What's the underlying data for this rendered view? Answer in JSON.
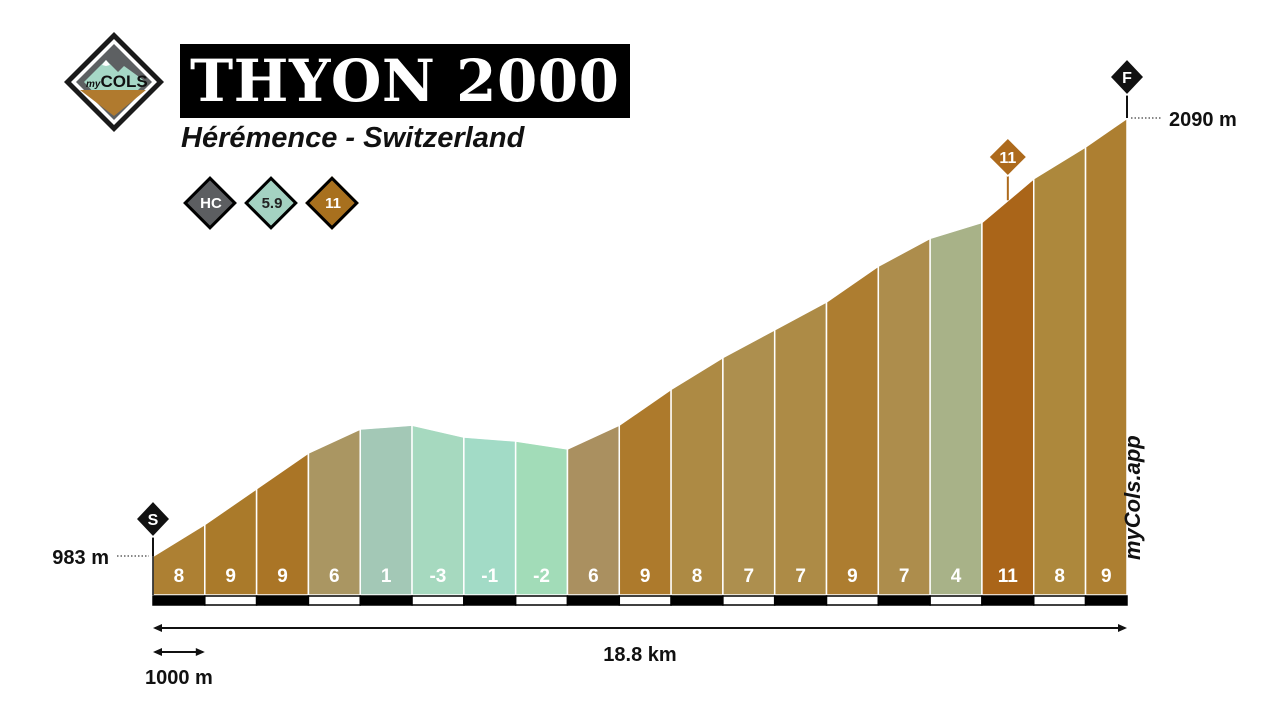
{
  "title": "THYON 2000",
  "subtitle": "Hérémence - Switzerland",
  "logo": {
    "text_small": "my",
    "text_big": "COLS"
  },
  "badges": [
    {
      "label": "HC",
      "color": "#5c5e61",
      "text_color": "#ffffff"
    },
    {
      "label": "5.9",
      "color": "#a4d2c2",
      "text_color": "#222222"
    },
    {
      "label": "11",
      "color": "#a8701e",
      "text_color": "#ffffff"
    }
  ],
  "start_marker": "S",
  "finish_marker": "F",
  "start_altitude": "983 m",
  "finish_altitude": "2090 m",
  "total_distance": "18.8 km",
  "scale_label": "1000 m",
  "brand": "myCols.app",
  "colors": {
    "grade_1_3": "#a8ccbc",
    "grade_4_6": "#a89a64",
    "grade_7_9": "#ad7d30",
    "grade_10_plus": "#aa6519",
    "descent": "#a2dcc0",
    "scale_dark": "#000000",
    "scale_light": "#ffffff"
  },
  "chart_data": {
    "type": "area",
    "title": "THYON 2000",
    "x_unit": "km",
    "y_unit": "m",
    "x_total_km": 18.8,
    "segment_length_m": 1000,
    "elevation_start_m": 983,
    "elevation_end_m": 2090,
    "max_gradient_marker": {
      "segment": 16,
      "label": "11"
    },
    "segments": [
      {
        "gradient": 8,
        "label": "8",
        "color": "#ad8033"
      },
      {
        "gradient": 9,
        "label": "9",
        "color": "#aa7a2a"
      },
      {
        "gradient": 9,
        "label": "9",
        "color": "#aa7526"
      },
      {
        "gradient": 6,
        "label": "6",
        "color": "#aa9662"
      },
      {
        "gradient": 1,
        "label": "1",
        "color": "#a3c8b6"
      },
      {
        "gradient": -3,
        "label": "-3",
        "color": "#a6d9bf"
      },
      {
        "gradient": -1,
        "label": "-1",
        "color": "#a2dbc6"
      },
      {
        "gradient": -2,
        "label": "-2",
        "color": "#a2dcb8"
      },
      {
        "gradient": 6,
        "label": "6",
        "color": "#aa9060"
      },
      {
        "gradient": 9,
        "label": "9",
        "color": "#ad7a2c"
      },
      {
        "gradient": 8,
        "label": "8",
        "color": "#ad8a44"
      },
      {
        "gradient": 7,
        "label": "7",
        "color": "#ad8f4e"
      },
      {
        "gradient": 7,
        "label": "7",
        "color": "#ad8b46"
      },
      {
        "gradient": 9,
        "label": "9",
        "color": "#ad7d30"
      },
      {
        "gradient": 7,
        "label": "7",
        "color": "#ad8d4c"
      },
      {
        "gradient": 4,
        "label": "4",
        "color": "#a8b288"
      },
      {
        "gradient": 11,
        "label": "11",
        "color": "#aa6519"
      },
      {
        "gradient": 8,
        "label": "8",
        "color": "#ad883c"
      },
      {
        "gradient": 9,
        "label": "9",
        "color": "#ad7f31"
      }
    ]
  }
}
